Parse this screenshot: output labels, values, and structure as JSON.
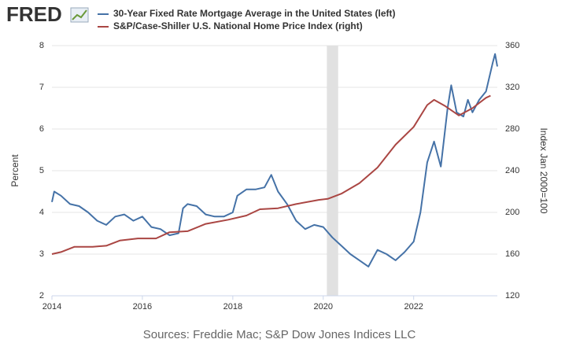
{
  "logo": "FRED",
  "chart_data": {
    "type": "line",
    "series": [
      {
        "name": "30-Year Fixed Rate Mortgage Average in the United States (left)",
        "color": "#4572a7",
        "axis": "y",
        "x": [
          2014.0,
          2014.05,
          2014.2,
          2014.4,
          2014.6,
          2014.8,
          2015.0,
          2015.2,
          2015.4,
          2015.6,
          2015.8,
          2016.0,
          2016.2,
          2016.4,
          2016.6,
          2016.8,
          2016.9,
          2017.0,
          2017.2,
          2017.4,
          2017.6,
          2017.8,
          2018.0,
          2018.1,
          2018.3,
          2018.5,
          2018.7,
          2018.85,
          2019.0,
          2019.2,
          2019.4,
          2019.6,
          2019.8,
          2020.0,
          2020.2,
          2020.4,
          2020.6,
          2020.8,
          2021.0,
          2021.2,
          2021.4,
          2021.6,
          2021.8,
          2022.0,
          2022.15,
          2022.3,
          2022.45,
          2022.6,
          2022.75,
          2022.83,
          2022.95,
          2023.1,
          2023.2,
          2023.3,
          2023.45,
          2023.6,
          2023.75,
          2023.8,
          2023.85
        ],
        "values": [
          4.25,
          4.5,
          4.4,
          4.2,
          4.15,
          4.0,
          3.8,
          3.7,
          3.9,
          3.95,
          3.8,
          3.9,
          3.65,
          3.6,
          3.45,
          3.5,
          4.1,
          4.2,
          4.15,
          3.95,
          3.9,
          3.9,
          4.0,
          4.4,
          4.55,
          4.55,
          4.6,
          4.9,
          4.5,
          4.2,
          3.8,
          3.6,
          3.7,
          3.65,
          3.4,
          3.2,
          3.0,
          2.85,
          2.7,
          3.1,
          3.0,
          2.85,
          3.05,
          3.3,
          4.0,
          5.2,
          5.7,
          5.1,
          6.5,
          7.05,
          6.4,
          6.3,
          6.7,
          6.4,
          6.7,
          6.9,
          7.6,
          7.8,
          7.5
        ]
      },
      {
        "name": "S&P/Case-Shiller U.S. National Home Price Index (right)",
        "color": "#aa4643",
        "axis": "y2",
        "x": [
          2014.0,
          2014.2,
          2014.5,
          2014.9,
          2015.2,
          2015.5,
          2015.9,
          2016.3,
          2016.6,
          2017.0,
          2017.4,
          2017.9,
          2018.3,
          2018.6,
          2019.0,
          2019.4,
          2019.9,
          2020.1,
          2020.4,
          2020.8,
          2021.2,
          2021.6,
          2022.0,
          2022.3,
          2022.45,
          2022.7,
          2023.0,
          2023.3,
          2023.6,
          2023.7
        ],
        "values": [
          160,
          162,
          167,
          167,
          168,
          173,
          175,
          175,
          181,
          182,
          189,
          193,
          197,
          203,
          204,
          208,
          212,
          213,
          218,
          228,
          243,
          265,
          282,
          303,
          308,
          302,
          293,
          300,
          310,
          312
        ]
      }
    ],
    "xlim": [
      2014,
      2023.85
    ],
    "xticks": [
      2014,
      2016,
      2018,
      2020,
      2022
    ],
    "ylim": [
      2,
      8
    ],
    "yticks": [
      2,
      3,
      4,
      5,
      6,
      7,
      8
    ],
    "y2lim": [
      120,
      360
    ],
    "y2ticks": [
      120,
      160,
      200,
      240,
      280,
      320,
      360
    ],
    "ylabel": "Percent",
    "y2label": "Index Jan 2000=100",
    "recession": [
      2020.08,
      2020.33
    ],
    "grid": true,
    "source": "Sources: Freddie Mac; S&P Dow Jones Indices LLC"
  }
}
